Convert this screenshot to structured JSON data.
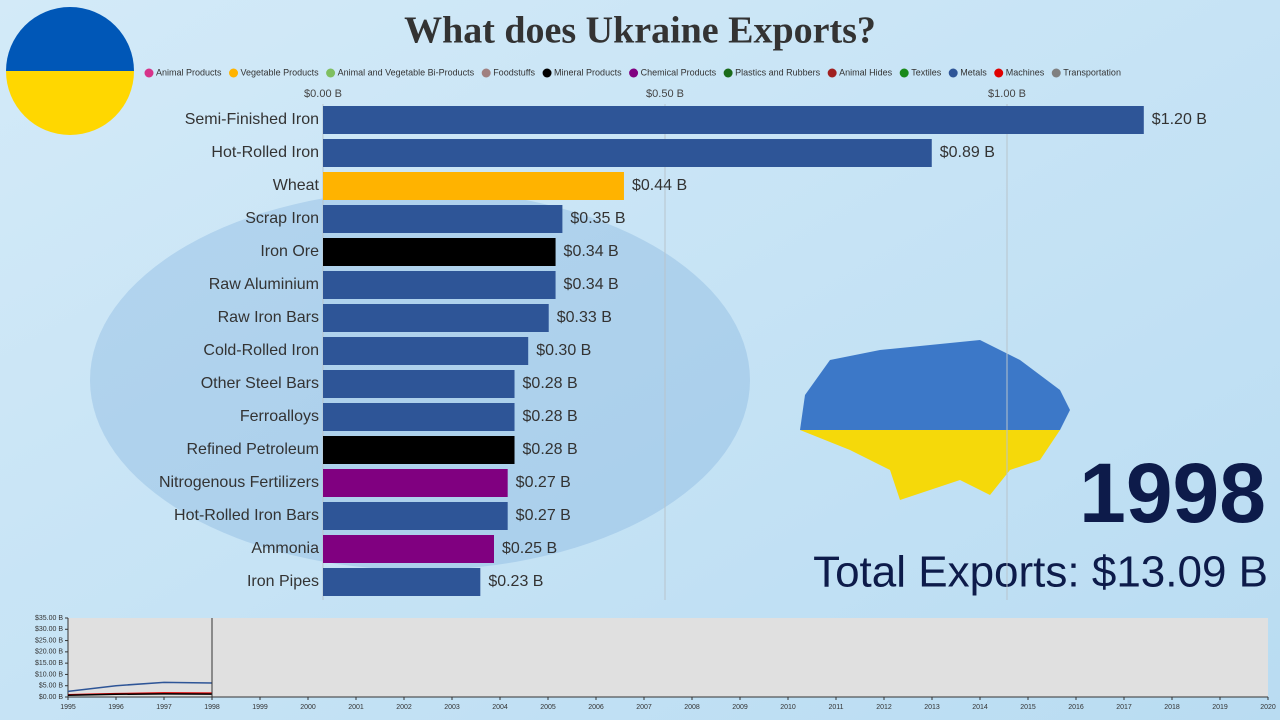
{
  "chart_data": [
    {
      "type": "hbar",
      "title": "What does Ukraine Exports?",
      "legend": [
        {
          "name": "Animal Products",
          "color": "#d6338a"
        },
        {
          "name": "Vegetable Products",
          "color": "#ffb300"
        },
        {
          "name": "Animal and Vegetable Bi-Products",
          "color": "#7fbf60"
        },
        {
          "name": "Foodstuffs",
          "color": "#a08080"
        },
        {
          "name": "Mineral Products",
          "color": "#000000"
        },
        {
          "name": "Chemical Products",
          "color": "#800080"
        },
        {
          "name": "Plastics and Rubbers",
          "color": "#1a6b1a"
        },
        {
          "name": "Animal Hides",
          "color": "#a02020"
        },
        {
          "name": "Textiles",
          "color": "#1a8a1a"
        },
        {
          "name": "Metals",
          "color": "#2e5597"
        },
        {
          "name": "Machines",
          "color": "#e00000"
        },
        {
          "name": "Transportation",
          "color": "#808080"
        }
      ],
      "categories": [
        "Semi-Finished Iron",
        "Hot-Rolled Iron",
        "Wheat",
        "Scrap Iron",
        "Iron Ore",
        "Raw Aluminium",
        "Raw Iron Bars",
        "Cold-Rolled Iron",
        "Other Steel Bars",
        "Ferroalloys",
        "Refined Petroleum",
        "Nitrogenous Fertilizers",
        "Hot-Rolled Iron Bars",
        "Ammonia",
        "Iron Pipes"
      ],
      "values": [
        1.2,
        0.89,
        0.44,
        0.35,
        0.34,
        0.34,
        0.33,
        0.3,
        0.28,
        0.28,
        0.28,
        0.27,
        0.27,
        0.25,
        0.23
      ],
      "value_labels": [
        "$1.20 B",
        "$0.89 B",
        "$0.44 B",
        "$0.35 B",
        "$0.34 B",
        "$0.34 B",
        "$0.33 B",
        "$0.30 B",
        "$0.28 B",
        "$0.28 B",
        "$0.28 B",
        "$0.27 B",
        "$0.27 B",
        "$0.25 B",
        "$0.23 B"
      ],
      "colors": [
        "#2e5597",
        "#2e5597",
        "#ffb300",
        "#2e5597",
        "#000000",
        "#2e5597",
        "#2e5597",
        "#2e5597",
        "#2e5597",
        "#2e5597",
        "#000000",
        "#800080",
        "#2e5597",
        "#800080",
        "#2e5597"
      ],
      "xlim": [
        0,
        1.3
      ],
      "xticks": [
        {
          "value": 0,
          "label": "$0.00 B"
        },
        {
          "value": 0.5,
          "label": "$0.50 B"
        },
        {
          "value": 1,
          "label": "$1.00 B"
        }
      ],
      "grid": true,
      "year": "1998",
      "total": "Total Exports: $13.09 B"
    },
    {
      "type": "line",
      "x": [
        1995,
        1996,
        1997,
        1998
      ],
      "series": [
        {
          "name": "Metals",
          "color": "#2e5597",
          "values": [
            2.5,
            5,
            6.5,
            6.2
          ]
        },
        {
          "name": "Machines",
          "color": "#e00000",
          "values": [
            1,
            1.5,
            1.8,
            1.7
          ]
        },
        {
          "name": "Mineral Products",
          "color": "#000000",
          "values": [
            0.8,
            1.2,
            1.4,
            1.3
          ]
        }
      ],
      "xlim": [
        1995,
        2020
      ],
      "xticks": [
        1995,
        1996,
        1997,
        1998,
        1999,
        2000,
        2001,
        2002,
        2003,
        2004,
        2005,
        2006,
        2007,
        2008,
        2009,
        2010,
        2011,
        2012,
        2013,
        2014,
        2015,
        2016,
        2017,
        2018,
        2019,
        2020
      ],
      "ylim": [
        0,
        35
      ],
      "yticks": [
        {
          "value": 0,
          "label": "$0.00 B"
        },
        {
          "value": 5,
          "label": "$5.00 B"
        },
        {
          "value": 10,
          "label": "$10.00 B"
        },
        {
          "value": 15,
          "label": "$15.00 B"
        },
        {
          "value": 20,
          "label": "$20.00 B"
        },
        {
          "value": 25,
          "label": "$25.00 B"
        },
        {
          "value": 30,
          "label": "$30.00 B"
        },
        {
          "value": 35,
          "label": "$35.00 B"
        }
      ]
    }
  ]
}
